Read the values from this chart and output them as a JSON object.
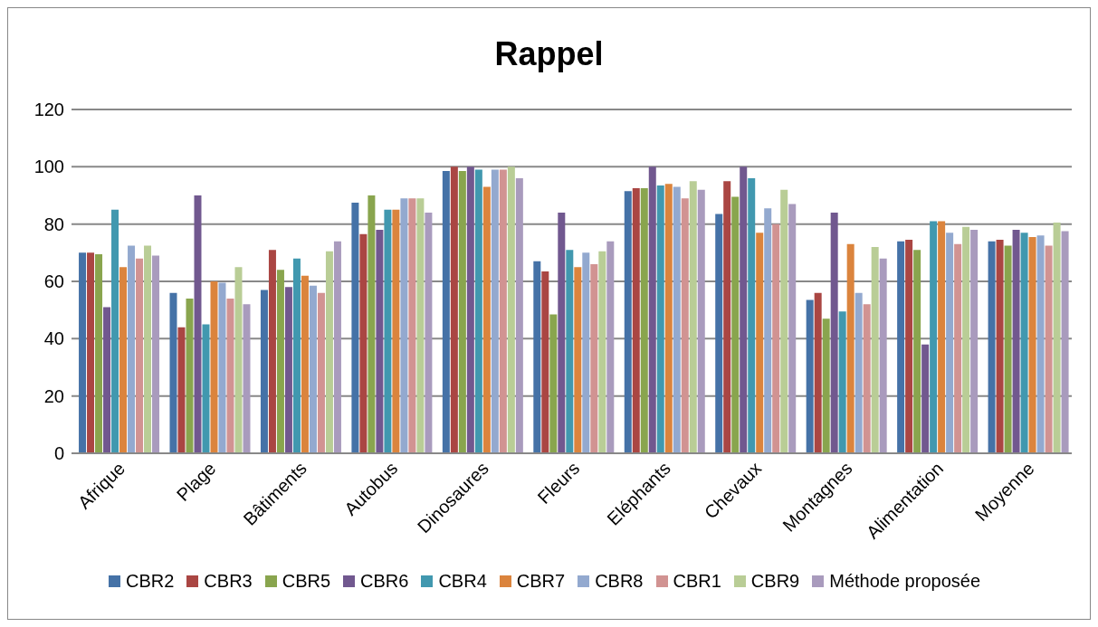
{
  "chart_data": {
    "type": "bar",
    "title": "Rappel",
    "categories": [
      "Afrique",
      "Plage",
      "Bâtiments",
      "Autobus",
      "Dinosaures",
      "Fleurs",
      "Eléphants",
      "Chevaux",
      "Montagnes",
      "Alimentation",
      "Moyenne"
    ],
    "series": [
      {
        "name": "CBR2",
        "color": "#4572a7",
        "values": [
          70,
          56,
          57,
          87.5,
          98.5,
          67,
          91.5,
          83.5,
          53.5,
          74,
          74
        ]
      },
      {
        "name": "CBR3",
        "color": "#aa4643",
        "values": [
          70,
          44,
          71,
          76.5,
          100,
          63.5,
          92.5,
          95,
          56,
          74.5,
          74.5
        ]
      },
      {
        "name": "CBR5",
        "color": "#89a54e",
        "values": [
          69.5,
          54,
          64,
          90,
          98.5,
          48.5,
          92.5,
          89.5,
          47,
          71,
          72.5
        ]
      },
      {
        "name": "CBR6",
        "color": "#71588f",
        "values": [
          51,
          90,
          58,
          78,
          100,
          84,
          100,
          100,
          84,
          38,
          78
        ]
      },
      {
        "name": "CBR4",
        "color": "#4198af",
        "values": [
          85,
          45,
          68,
          85,
          99,
          71,
          93.5,
          96,
          49.5,
          81,
          77
        ]
      },
      {
        "name": "CBR7",
        "color": "#db843d",
        "values": [
          65,
          60,
          62,
          85,
          93,
          65,
          94,
          77,
          73,
          81,
          75.5
        ]
      },
      {
        "name": "CBR8",
        "color": "#93a9cf",
        "values": [
          72.5,
          59.5,
          58.5,
          89,
          99,
          70,
          93,
          85.5,
          56,
          77,
          76
        ]
      },
      {
        "name": "CBR1",
        "color": "#d19392",
        "values": [
          68,
          54,
          56,
          89,
          99,
          66,
          89,
          80,
          52,
          73,
          72.5
        ]
      },
      {
        "name": "CBR9",
        "color": "#b9cd96",
        "values": [
          72.5,
          65,
          70.5,
          89,
          100,
          70.5,
          95,
          92,
          72,
          79,
          80.5
        ]
      },
      {
        "name": "Méthode proposée",
        "color": "#a99bbd",
        "values": [
          69,
          52,
          74,
          84,
          96,
          74,
          92,
          87,
          68,
          78,
          77.5
        ]
      }
    ],
    "ylim": [
      0,
      120
    ],
    "yticks": [
      0,
      20,
      40,
      60,
      80,
      100,
      120
    ],
    "grid": "y",
    "legend": "bottom"
  }
}
